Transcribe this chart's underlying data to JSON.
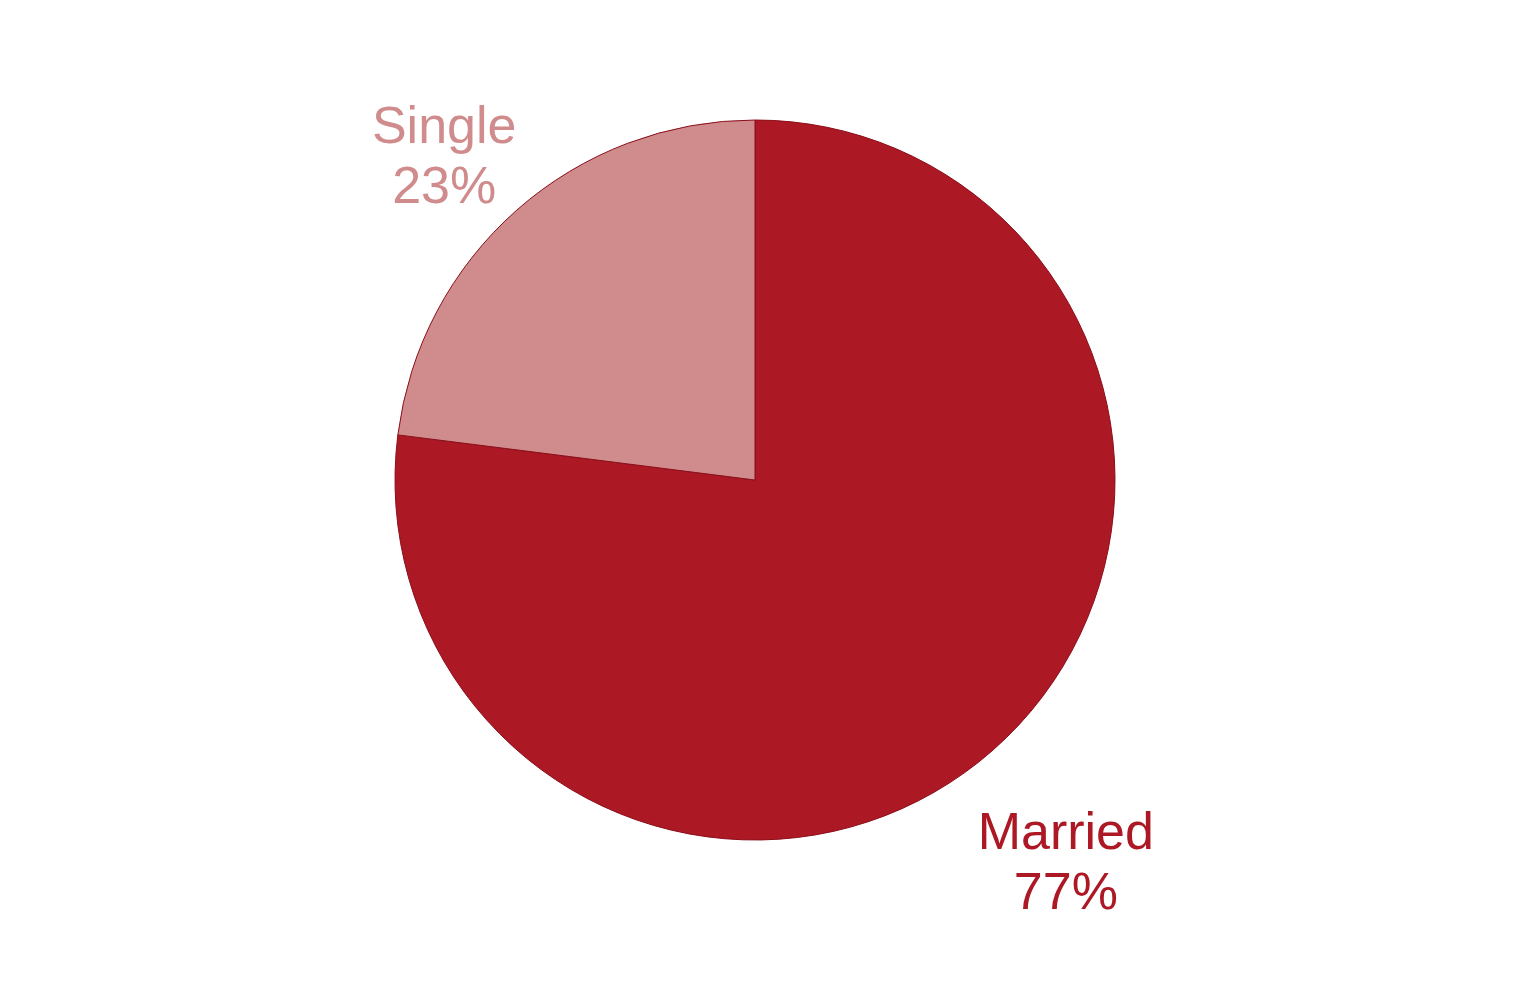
{
  "chart_data": {
    "type": "pie",
    "categories": [
      "Married",
      "Single"
    ],
    "values": [
      77,
      23
    ],
    "value_labels": [
      "77%",
      "23%"
    ],
    "colors": [
      "#ad1825",
      "#d08c8c"
    ],
    "legend": false
  }
}
